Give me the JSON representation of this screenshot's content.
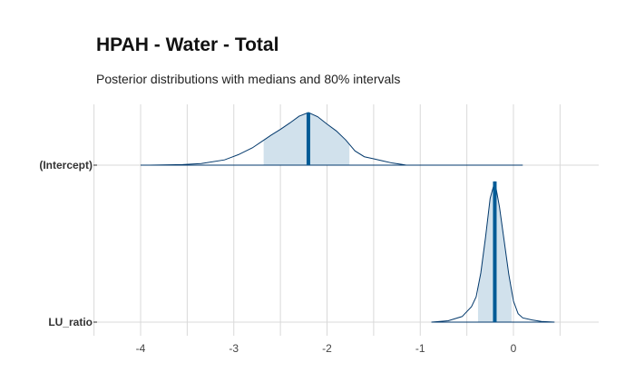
{
  "chart_data": {
    "type": "area",
    "title": "HPAH - Water - Total",
    "subtitle": "Posterior distributions with medians and 80% intervals",
    "x_ticks": [
      -4,
      -3,
      -2,
      -1,
      0
    ],
    "x_tick_labels": [
      "-4",
      "-3",
      "-2",
      "-1",
      "0"
    ],
    "xlim": [
      -4.0,
      0.9
    ],
    "grid": true,
    "colors": {
      "fill": "#d1e1ec",
      "line": "#03396c",
      "median": "#005b96",
      "grid": "#d9d9d9"
    },
    "parameters": [
      {
        "label": "(Intercept)",
        "median": -2.2,
        "interval": [
          -2.68,
          -1.76
        ],
        "density": [
          [
            -3.9,
            0.0
          ],
          [
            -3.55,
            0.01
          ],
          [
            -3.35,
            0.03
          ],
          [
            -3.1,
            0.1
          ],
          [
            -2.95,
            0.2
          ],
          [
            -2.8,
            0.33
          ],
          [
            -2.7,
            0.45
          ],
          [
            -2.6,
            0.57
          ],
          [
            -2.5,
            0.68
          ],
          [
            -2.4,
            0.8
          ],
          [
            -2.3,
            0.93
          ],
          [
            -2.2,
            1.0
          ],
          [
            -2.1,
            0.92
          ],
          [
            -2.0,
            0.78
          ],
          [
            -1.9,
            0.65
          ],
          [
            -1.8,
            0.48
          ],
          [
            -1.7,
            0.27
          ],
          [
            -1.6,
            0.16
          ],
          [
            -1.5,
            0.12
          ],
          [
            -1.4,
            0.08
          ],
          [
            -1.3,
            0.04
          ],
          [
            -1.2,
            0.015
          ],
          [
            -1.15,
            0.0
          ]
        ],
        "line_extent": [
          -4.0,
          0.1
        ]
      },
      {
        "label": "LU_ratio",
        "median": -0.2,
        "interval": [
          -0.38,
          -0.02
        ],
        "density": [
          [
            -0.88,
            0.0
          ],
          [
            -0.7,
            0.01
          ],
          [
            -0.55,
            0.04
          ],
          [
            -0.45,
            0.11
          ],
          [
            -0.4,
            0.18
          ],
          [
            -0.35,
            0.35
          ],
          [
            -0.3,
            0.6
          ],
          [
            -0.25,
            0.88
          ],
          [
            -0.2,
            1.0
          ],
          [
            -0.15,
            0.82
          ],
          [
            -0.1,
            0.58
          ],
          [
            -0.05,
            0.34
          ],
          [
            0.0,
            0.15
          ],
          [
            0.05,
            0.06
          ],
          [
            0.1,
            0.03
          ],
          [
            0.2,
            0.015
          ],
          [
            0.3,
            0.005
          ],
          [
            0.44,
            0.0
          ]
        ],
        "line_extent": [
          -0.88,
          0.44
        ]
      }
    ]
  }
}
